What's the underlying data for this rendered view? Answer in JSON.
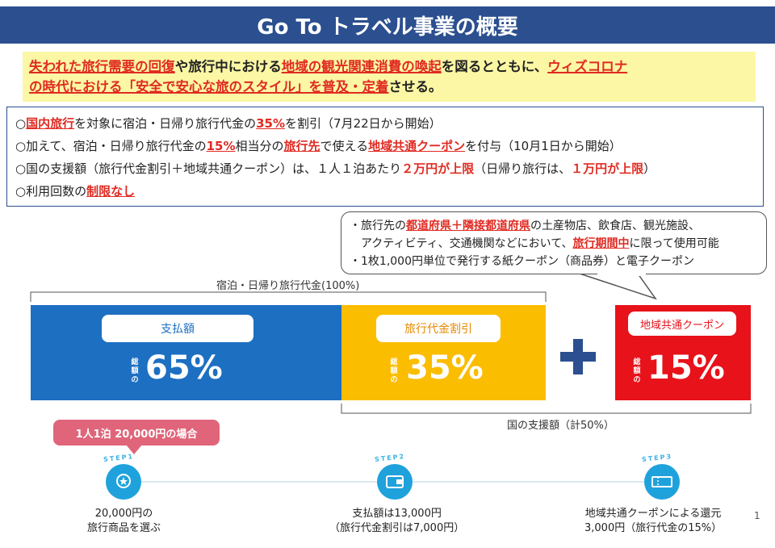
{
  "title": "Go To トラベル事業の概要",
  "lead": {
    "seg1": "失われた旅行需要の回復",
    "seg2": "や旅行中における",
    "seg3": "地域の観光関連消費の喚起",
    "seg4": "を図るとともに、",
    "seg5": "ウィズコロナ",
    "seg6": "の時代における「安全で安心な旅のスタイル」を普及・定着",
    "seg7": "させる。"
  },
  "points": [
    {
      "a": "○",
      "b": "国内旅行",
      "c": "を対象に宿泊・日帰り旅行代金の",
      "d": "35%",
      "e": "を割引（7月22日から開始）"
    },
    {
      "a": "○加えて、宿泊・日帰り旅行代金の",
      "b": "15%",
      "c": "相当分の",
      "d": "旅行先",
      "e": "で使える",
      "f": "地域共通クーポン",
      "g": "を付与（10月1日から開始）"
    },
    {
      "a": "○国の支援額（旅行代金割引＋地域共通クーポン）は、１人１泊あたり",
      "b": "２万円が上限",
      "c": "（日帰り旅行は、",
      "d": "１万円が上限",
      "e": "）"
    },
    {
      "a": "○利用回数の",
      "b": "制限なし"
    }
  ],
  "callout": {
    "l1a": "・旅行先の",
    "l1b": "都道府県＋隣接都道府県",
    "l1c": "の土産物店、飲食店、観光施設、",
    "l2a": "アクティビティ、交通機関などにおいて、",
    "l2b": "旅行期間中",
    "l2c": "に限って使用可能",
    "l3": "・1枚1,000円単位で発行する紙クーポン（商品券）と電子クーポン"
  },
  "total_label": "宿泊・日帰り旅行代金(100%)",
  "support_label": "国の支援額（計50%）",
  "bars": [
    {
      "name": "支払額",
      "value": "65%",
      "prefix": "総額の"
    },
    {
      "name": "旅行代金割引",
      "value": "35%",
      "prefix": "総額の"
    },
    {
      "name": "地域共通クーポン",
      "value": "15%",
      "prefix": "総額の"
    }
  ],
  "example_label": "1人1泊 20,000円の場合",
  "steps": [
    {
      "tag": "STEP1",
      "line1": "20,000円の",
      "line2": "旅行商品を選ぶ"
    },
    {
      "tag": "STEP2",
      "line1": "支払額は13,000円",
      "line2": "（旅行代金割引は7,000円）"
    },
    {
      "tag": "STEP3",
      "line1": "地域共通クーポンによる還元",
      "line2": "3,000円（旅行代金の15%）"
    }
  ],
  "page_number": "1",
  "colors": {
    "title_bg": "#2b4f8f",
    "highlight_red": "#e02b22",
    "lead_bg": "#fbf7a4",
    "blue": "#1d6fc2",
    "yellow": "#fbbd00",
    "red": "#e8121a"
  }
}
